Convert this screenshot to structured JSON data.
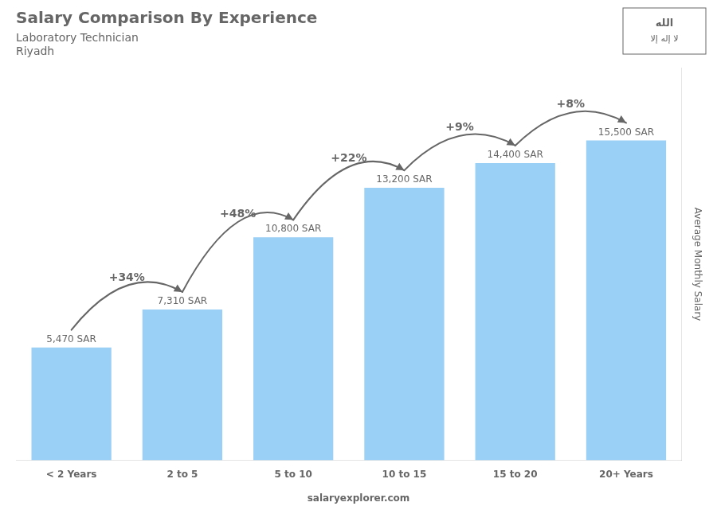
{
  "chart_data": {
    "type": "bar",
    "title": "Salary Comparison By Experience",
    "subtitle": [
      "Laboratory Technician",
      "Riyadh"
    ],
    "ylabel": "Average Monthly Salary",
    "categories": [
      "< 2 Years",
      "2 to 5",
      "5 to 10",
      "10 to 15",
      "15 to 20",
      "20+ Years"
    ],
    "values": [
      5470,
      7310,
      10800,
      13200,
      14400,
      15500
    ],
    "value_labels": [
      "5,470 SAR",
      "7,310 SAR",
      "10,800 SAR",
      "13,200 SAR",
      "14,400 SAR",
      "15,500 SAR"
    ],
    "data_labels": true,
    "ylim": [
      0,
      19000
    ],
    "tick_labels": "x",
    "grid": false,
    "annotations": [
      {
        "text": "+34%",
        "between": [
          "< 2 Years",
          "2 to 5"
        ]
      },
      {
        "text": "+48%",
        "between": [
          "2 to 5",
          "5 to 10"
        ]
      },
      {
        "text": "+22%",
        "between": [
          "5 to 10",
          "10 to 15"
        ]
      },
      {
        "text": "+9%",
        "between": [
          "10 to 15",
          "15 to 20"
        ]
      },
      {
        "text": "+8%",
        "between": [
          "15 to 20",
          "20+ Years"
        ]
      }
    ],
    "footer": "salaryexplorer.com",
    "flag_text": [
      "الله",
      "لا إله إلا"
    ]
  }
}
